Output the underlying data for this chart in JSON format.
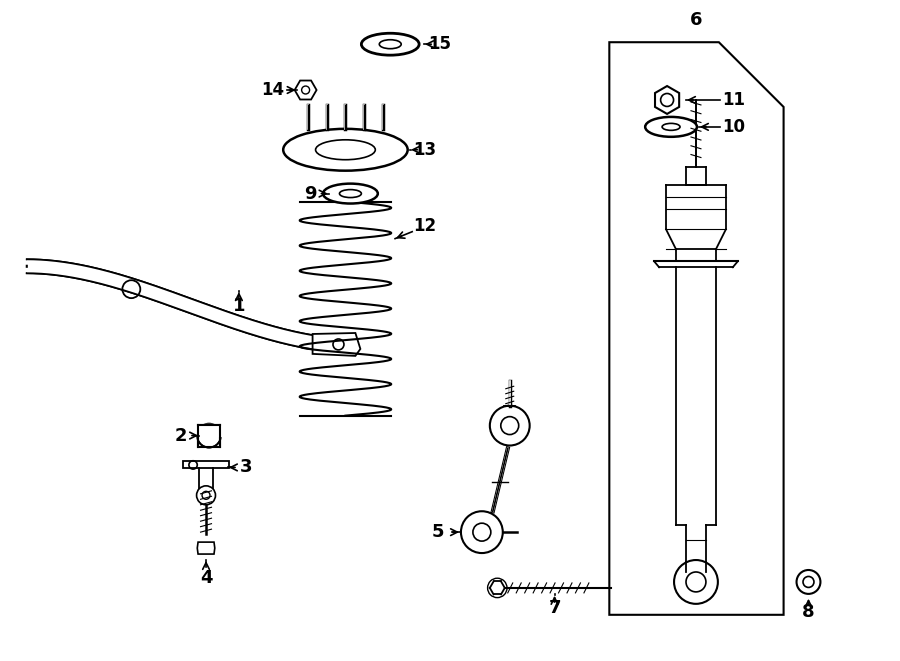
{
  "bg_color": "#ffffff",
  "line_color": "#000000",
  "fig_width": 9.0,
  "fig_height": 6.61,
  "dpi": 100,
  "xlim": [
    0,
    9.0
  ],
  "ylim": [
    0,
    6.61
  ]
}
